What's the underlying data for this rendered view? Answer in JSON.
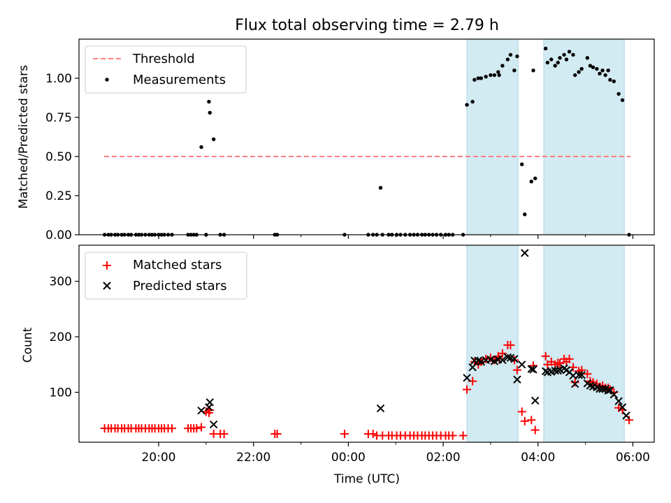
{
  "chart_data": {
    "title": "Flux total observing time = 2.79 h",
    "colors": {
      "shade": "#add8e6",
      "threshold": "#ff7f7f",
      "measurement": "#000000",
      "matched": "#ff0000",
      "predicted": "#000000"
    },
    "x_axis": {
      "label": "Time (UTC)",
      "range_hours": [
        18.32,
        30.45
      ],
      "ticks": [
        {
          "hour": 20,
          "label": "20:00"
        },
        {
          "hour": 22,
          "label": "22:00"
        },
        {
          "hour": 24,
          "label": "00:00"
        },
        {
          "hour": 26,
          "label": "02:00"
        },
        {
          "hour": 28,
          "label": "04:00"
        },
        {
          "hour": 30,
          "label": "06:00"
        }
      ],
      "minor_ticks": [
        21,
        23,
        25,
        27,
        29
      ]
    },
    "shaded_intervals": [
      [
        26.5,
        27.58
      ],
      [
        28.12,
        29.82
      ]
    ],
    "top_panel": {
      "type": "scatter",
      "ylabel": "Matched/Predicted stars",
      "ylim": [
        0,
        1.25
      ],
      "yticks": [
        "0.00",
        "0.25",
        "0.50",
        "0.75",
        "1.00"
      ],
      "legend": {
        "position": "upper-left",
        "threshold_label": "Threshold",
        "measurements_label": "Measurements"
      },
      "threshold": {
        "value": 0.5,
        "x_range": [
          18.85,
          29.95
        ]
      },
      "measurements": [
        [
          18.86,
          0
        ],
        [
          18.94,
          0
        ],
        [
          19.0,
          0
        ],
        [
          19.08,
          0
        ],
        [
          19.14,
          0
        ],
        [
          19.22,
          0
        ],
        [
          19.28,
          0
        ],
        [
          19.36,
          0
        ],
        [
          19.42,
          0
        ],
        [
          19.52,
          0
        ],
        [
          19.58,
          0
        ],
        [
          19.64,
          0
        ],
        [
          19.72,
          0
        ],
        [
          19.8,
          0
        ],
        [
          19.86,
          0
        ],
        [
          19.92,
          0
        ],
        [
          20.0,
          0
        ],
        [
          20.06,
          0
        ],
        [
          20.12,
          0
        ],
        [
          20.2,
          0
        ],
        [
          20.28,
          0
        ],
        [
          20.62,
          0
        ],
        [
          20.68,
          0
        ],
        [
          20.74,
          0
        ],
        [
          20.8,
          0
        ],
        [
          20.9,
          0.56
        ],
        [
          21.0,
          0
        ],
        [
          21.06,
          0.85
        ],
        [
          21.08,
          0.78
        ],
        [
          21.16,
          0.61
        ],
        [
          21.3,
          0
        ],
        [
          21.38,
          0
        ],
        [
          22.45,
          0
        ],
        [
          22.5,
          0
        ],
        [
          23.92,
          0
        ],
        [
          24.42,
          0
        ],
        [
          24.52,
          0
        ],
        [
          24.6,
          0
        ],
        [
          24.68,
          0.3
        ],
        [
          24.72,
          0
        ],
        [
          24.85,
          0
        ],
        [
          24.92,
          0
        ],
        [
          25.02,
          0
        ],
        [
          25.1,
          0
        ],
        [
          25.2,
          0
        ],
        [
          25.3,
          0
        ],
        [
          25.38,
          0
        ],
        [
          25.46,
          0
        ],
        [
          25.55,
          0
        ],
        [
          25.62,
          0
        ],
        [
          25.7,
          0
        ],
        [
          25.78,
          0
        ],
        [
          25.86,
          0
        ],
        [
          25.95,
          0
        ],
        [
          26.05,
          0
        ],
        [
          26.12,
          0
        ],
        [
          26.2,
          0
        ],
        [
          26.42,
          0
        ],
        [
          26.5,
          0.83
        ],
        [
          26.62,
          0.85
        ],
        [
          26.66,
          0.99
        ],
        [
          26.74,
          1.0
        ],
        [
          26.8,
          1.0
        ],
        [
          26.9,
          1.01
        ],
        [
          27.0,
          1.02
        ],
        [
          27.08,
          1.02
        ],
        [
          27.16,
          1.04
        ],
        [
          27.18,
          1.02
        ],
        [
          27.25,
          1.08
        ],
        [
          27.36,
          1.12
        ],
        [
          27.42,
          1.15
        ],
        [
          27.5,
          1.05
        ],
        [
          27.56,
          1.14
        ],
        [
          27.66,
          0.45
        ],
        [
          27.72,
          0.13
        ],
        [
          27.86,
          0.34
        ],
        [
          27.94,
          0.36
        ],
        [
          27.9,
          1.05
        ],
        [
          28.16,
          1.19
        ],
        [
          28.2,
          1.1
        ],
        [
          28.28,
          1.12
        ],
        [
          28.36,
          1.08
        ],
        [
          28.42,
          1.1
        ],
        [
          28.46,
          1.13
        ],
        [
          28.55,
          1.15
        ],
        [
          28.6,
          1.12
        ],
        [
          28.66,
          1.17
        ],
        [
          28.74,
          1.15
        ],
        [
          28.78,
          1.02
        ],
        [
          28.86,
          1.04
        ],
        [
          28.92,
          1.06
        ],
        [
          29.04,
          1.13
        ],
        [
          29.1,
          1.08
        ],
        [
          29.16,
          1.07
        ],
        [
          29.24,
          1.06
        ],
        [
          29.3,
          1.03
        ],
        [
          29.36,
          1.05
        ],
        [
          29.42,
          1.02
        ],
        [
          29.48,
          1.05
        ],
        [
          29.52,
          0.99
        ],
        [
          29.6,
          0.98
        ],
        [
          29.7,
          0.9
        ],
        [
          29.78,
          0.86
        ],
        [
          29.92,
          0
        ]
      ]
    },
    "bottom_panel": {
      "type": "scatter",
      "ylabel": "Count",
      "ylim": [
        10,
        365
      ],
      "yticks": [
        "100",
        "200",
        "300"
      ],
      "legend": {
        "position": "upper-left",
        "matched_label": "Matched stars",
        "predicted_label": "Predicted stars"
      },
      "matched": [
        [
          18.86,
          35
        ],
        [
          18.94,
          35
        ],
        [
          19.0,
          35
        ],
        [
          19.08,
          35
        ],
        [
          19.14,
          35
        ],
        [
          19.22,
          35
        ],
        [
          19.28,
          35
        ],
        [
          19.36,
          35
        ],
        [
          19.42,
          35
        ],
        [
          19.52,
          35
        ],
        [
          19.58,
          35
        ],
        [
          19.64,
          35
        ],
        [
          19.72,
          35
        ],
        [
          19.8,
          35
        ],
        [
          19.86,
          35
        ],
        [
          19.92,
          35
        ],
        [
          20.0,
          35
        ],
        [
          20.06,
          35
        ],
        [
          20.12,
          35
        ],
        [
          20.2,
          35
        ],
        [
          20.28,
          35
        ],
        [
          20.62,
          35
        ],
        [
          20.68,
          35
        ],
        [
          20.74,
          35
        ],
        [
          20.8,
          35
        ],
        [
          20.9,
          37
        ],
        [
          21.0,
          65
        ],
        [
          21.06,
          63
        ],
        [
          21.08,
          68
        ],
        [
          21.16,
          25
        ],
        [
          21.3,
          25
        ],
        [
          21.38,
          25
        ],
        [
          22.45,
          25
        ],
        [
          22.5,
          25
        ],
        [
          23.92,
          25
        ],
        [
          24.42,
          25
        ],
        [
          24.52,
          25
        ],
        [
          24.6,
          22
        ],
        [
          24.72,
          22
        ],
        [
          24.85,
          22
        ],
        [
          24.92,
          22
        ],
        [
          25.02,
          22
        ],
        [
          25.1,
          22
        ],
        [
          25.2,
          22
        ],
        [
          25.3,
          22
        ],
        [
          25.38,
          22
        ],
        [
          25.46,
          22
        ],
        [
          25.55,
          22
        ],
        [
          25.62,
          22
        ],
        [
          25.7,
          22
        ],
        [
          25.78,
          22
        ],
        [
          25.86,
          22
        ],
        [
          25.95,
          22
        ],
        [
          26.05,
          22
        ],
        [
          26.12,
          22
        ],
        [
          26.2,
          22
        ],
        [
          26.42,
          22
        ],
        [
          26.5,
          105
        ],
        [
          26.62,
          120
        ],
        [
          26.66,
          155
        ],
        [
          26.74,
          150
        ],
        [
          26.8,
          155
        ],
        [
          26.9,
          160
        ],
        [
          27.0,
          162
        ],
        [
          27.08,
          158
        ],
        [
          27.16,
          165
        ],
        [
          27.18,
          160
        ],
        [
          27.25,
          170
        ],
        [
          27.36,
          185
        ],
        [
          27.42,
          185
        ],
        [
          27.5,
          158
        ],
        [
          27.56,
          140
        ],
        [
          27.66,
          65
        ],
        [
          27.72,
          48
        ],
        [
          27.86,
          50
        ],
        [
          27.94,
          32
        ],
        [
          27.9,
          148
        ],
        [
          28.16,
          165
        ],
        [
          28.2,
          150
        ],
        [
          28.28,
          155
        ],
        [
          28.36,
          150
        ],
        [
          28.42,
          153
        ],
        [
          28.46,
          152
        ],
        [
          28.55,
          160
        ],
        [
          28.6,
          155
        ],
        [
          28.66,
          160
        ],
        [
          28.74,
          145
        ],
        [
          28.78,
          118
        ],
        [
          28.86,
          138
        ],
        [
          28.92,
          140
        ],
        [
          29.04,
          133
        ],
        [
          29.1,
          120
        ],
        [
          29.16,
          118
        ],
        [
          29.24,
          115
        ],
        [
          29.3,
          110
        ],
        [
          29.36,
          112
        ],
        [
          29.42,
          108
        ],
        [
          29.48,
          108
        ],
        [
          29.52,
          105
        ],
        [
          29.6,
          100
        ],
        [
          29.7,
          72
        ],
        [
          29.78,
          68
        ],
        [
          29.92,
          50
        ]
      ],
      "predicted": [
        [
          20.9,
          67
        ],
        [
          21.06,
          73
        ],
        [
          21.08,
          82
        ],
        [
          21.16,
          42
        ],
        [
          24.68,
          71
        ],
        [
          26.5,
          126
        ],
        [
          26.62,
          145
        ],
        [
          26.66,
          157
        ],
        [
          26.74,
          157
        ],
        [
          26.8,
          155
        ],
        [
          26.9,
          158
        ],
        [
          27.0,
          159
        ],
        [
          27.08,
          156
        ],
        [
          27.16,
          159
        ],
        [
          27.25,
          158
        ],
        [
          27.36,
          163
        ],
        [
          27.42,
          162
        ],
        [
          27.5,
          160
        ],
        [
          27.56,
          123
        ],
        [
          27.66,
          150
        ],
        [
          27.72,
          351
        ],
        [
          27.86,
          142
        ],
        [
          27.9,
          141
        ],
        [
          27.94,
          85
        ],
        [
          28.16,
          138
        ],
        [
          28.2,
          136
        ],
        [
          28.28,
          137
        ],
        [
          28.36,
          139
        ],
        [
          28.42,
          139
        ],
        [
          28.46,
          141
        ],
        [
          28.55,
          143
        ],
        [
          28.6,
          140
        ],
        [
          28.66,
          136
        ],
        [
          28.74,
          130
        ],
        [
          28.78,
          115
        ],
        [
          28.86,
          131
        ],
        [
          28.92,
          131
        ],
        [
          29.04,
          116
        ],
        [
          29.1,
          112
        ],
        [
          29.16,
          110
        ],
        [
          29.24,
          109
        ],
        [
          29.3,
          106
        ],
        [
          29.36,
          106
        ],
        [
          29.42,
          106
        ],
        [
          29.48,
          103
        ],
        [
          29.52,
          104
        ],
        [
          29.6,
          96
        ],
        [
          29.7,
          84
        ],
        [
          29.78,
          73
        ],
        [
          29.86,
          58
        ]
      ]
    }
  }
}
